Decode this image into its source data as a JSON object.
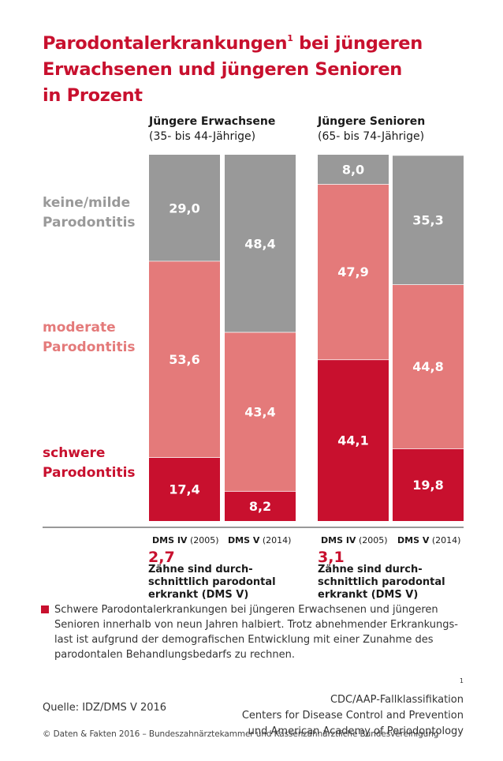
{
  "title": {
    "line1": "Parodontalerkrankungen",
    "superscript": "1",
    "line1_rest": " bei jüngeren",
    "line2": "Erwachsenen und jüngeren Senioren",
    "line3": "in Prozent"
  },
  "groups": [
    {
      "name": "Jüngere Erwachsene",
      "subtitle": "(35- bis 44-Jährige)"
    },
    {
      "name": "Jüngere Senioren",
      "subtitle": "(65- bis 74-Jährige)"
    }
  ],
  "categories": {
    "mild": {
      "line1": "keine/milde",
      "line2": "Parodontitis",
      "color": "#999999"
    },
    "moderate": {
      "line1": "moderate",
      "line2": "Parodontitis",
      "color": "#e47a7a"
    },
    "severe": {
      "line1": "schwere",
      "line2": "Parodontitis",
      "color": "#c8102e"
    }
  },
  "x_labels": [
    {
      "study": "DMS IV",
      "year": "(2005)"
    },
    {
      "study": "DMS V",
      "year": "(2014)"
    },
    {
      "study": "DMS IV",
      "year": "(2005)"
    },
    {
      "study": "DMS V",
      "year": "(2014)"
    }
  ],
  "notes": [
    {
      "number": "2,7",
      "line1": " Zähne sind durch-",
      "line2": "schnittlich parodontal",
      "line3": "erkrankt (DMS V)"
    },
    {
      "number": "3,1",
      "line1": " Zähne sind durch-",
      "line2": "schnittlich parodontal",
      "line3": "erkrankt (DMS V)"
    }
  ],
  "summary": {
    "line1": "Schwere Parodontalerkrankungen bei jüngeren Erwachsenen und jüngeren",
    "line2": "Senioren innerhalb von neun Jahren halbiert. Trotz abnehmender Erkrankungs-",
    "line3": "last ist aufgrund der demografischen Entwicklung mit einer Zunahme des",
    "line4": "parodontalen Behandlungsbedarfs zu rechnen."
  },
  "footnote": {
    "mark": "1",
    "line1": " CDC/AAP-Fallklassifikation",
    "line2": "Centers for Disease Control and Prevention",
    "line3": "und American Academy of Periodontology"
  },
  "source": "Quelle: IDZ/DMS V 2016",
  "copyright": "© Daten & Fakten 2016 – Bundeszahnärztekammer und Kassenzahnärztliche Bundesvereinigung",
  "chart_data": {
    "type": "bar",
    "stacked": true,
    "title": "Parodontalerkrankungen bei jüngeren Erwachsenen und jüngeren Senioren in Prozent",
    "unit": "Prozent",
    "ylim": [
      0,
      100
    ],
    "categories": [
      "DMS IV (2005)",
      "DMS V (2014)",
      "DMS IV (2005)",
      "DMS V (2014)"
    ],
    "groups": [
      "Jüngere Erwachsene",
      "Jüngere Erwachsene",
      "Jüngere Senioren",
      "Jüngere Senioren"
    ],
    "series": [
      {
        "name": "schwere Parodontitis",
        "color": "#c8102e",
        "values": [
          17.4,
          8.2,
          44.1,
          19.8
        ],
        "labels": [
          "17,4",
          "8,2",
          "44,1",
          "19,8"
        ]
      },
      {
        "name": "moderate Parodontitis",
        "color": "#e47a7a",
        "values": [
          53.6,
          43.4,
          47.9,
          44.8
        ],
        "labels": [
          "53,6",
          "43,4",
          "47,9",
          "44,8"
        ]
      },
      {
        "name": "keine/milde Parodontitis",
        "color": "#999999",
        "values": [
          29.0,
          48.4,
          8.0,
          35.3
        ],
        "labels": [
          "29,0",
          "48,4",
          "8,0",
          "35,3"
        ]
      }
    ]
  }
}
